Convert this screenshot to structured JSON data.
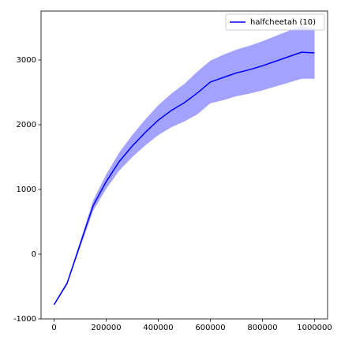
{
  "chart_data": {
    "type": "line",
    "x": [
      0,
      50000,
      100000,
      150000,
      200000,
      250000,
      300000,
      350000,
      400000,
      450000,
      500000,
      550000,
      600000,
      650000,
      700000,
      750000,
      800000,
      850000,
      900000,
      950000,
      1000000
    ],
    "series": [
      {
        "name": "halfcheetah (10)",
        "color": "#0000ff",
        "band_color": "#9999ff",
        "values": [
          -780,
          -450,
          150,
          750,
          1120,
          1430,
          1670,
          1880,
          2070,
          2220,
          2340,
          2490,
          2660,
          2730,
          2800,
          2850,
          2910,
          2980,
          3050,
          3120,
          3110
        ],
        "lower": [
          -795,
          -475,
          100,
          670,
          1010,
          1290,
          1500,
          1680,
          1840,
          1960,
          2050,
          2160,
          2330,
          2380,
          2440,
          2480,
          2530,
          2590,
          2650,
          2710,
          2710
        ],
        "upper": [
          -765,
          -425,
          200,
          830,
          1230,
          1570,
          1840,
          2080,
          2300,
          2480,
          2630,
          2820,
          2990,
          3080,
          3160,
          3220,
          3290,
          3370,
          3450,
          3530,
          3490
        ]
      }
    ],
    "xlim": [
      -50000,
      1050000
    ],
    "ylim": [
      -1000,
      3756
    ],
    "xticks": [
      0,
      200000,
      400000,
      600000,
      800000,
      1000000
    ],
    "yticks": [
      -1000,
      0,
      1000,
      2000,
      3000
    ],
    "legend": "upper right"
  }
}
